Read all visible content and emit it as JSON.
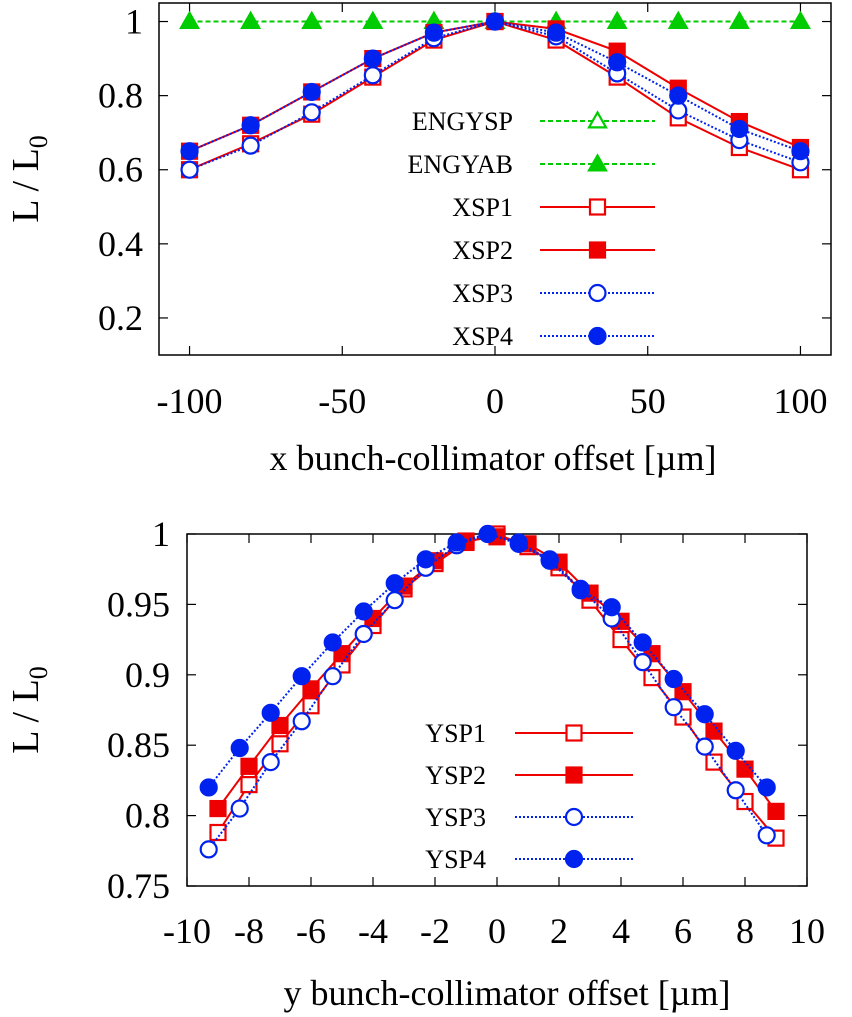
{
  "chart_data": [
    {
      "type": "line",
      "xlabel": "x bunch-collimator offset [µm]",
      "ylabel_main": "L / L",
      "ylabel_sub": "0",
      "xlim": [
        -110,
        110
      ],
      "ylim": [
        0.1,
        1.05
      ],
      "xticks": [
        "-100",
        "-50",
        "0",
        "50",
        "100"
      ],
      "yticks": [
        "0.2",
        "0.4",
        "0.6",
        "0.8",
        "1"
      ],
      "grid": false,
      "legend_position": "center-right",
      "x": [
        -100,
        -80,
        -60,
        -40,
        -20,
        0,
        20,
        40,
        60,
        80,
        100
      ],
      "series": [
        {
          "name": "ENGYSP",
          "color": "#00cc00",
          "line": "dashed",
          "marker": "triangle-open",
          "values": [
            1,
            1,
            1,
            1,
            1,
            1,
            1,
            1,
            1,
            1,
            1
          ]
        },
        {
          "name": "ENGYAB",
          "color": "#00cc00",
          "line": "dashed",
          "marker": "triangle-filled",
          "values": [
            1,
            1,
            1,
            1,
            1,
            1,
            1,
            1,
            1,
            1,
            1
          ]
        },
        {
          "name": "XSP1",
          "color": "#ee0000",
          "line": "solid",
          "marker": "square-open",
          "values": [
            0.6,
            0.67,
            0.75,
            0.85,
            0.95,
            1.0,
            0.95,
            0.85,
            0.74,
            0.66,
            0.6
          ]
        },
        {
          "name": "XSP2",
          "color": "#ee0000",
          "line": "solid",
          "marker": "square-filled",
          "values": [
            0.65,
            0.72,
            0.81,
            0.9,
            0.97,
            1.0,
            0.98,
            0.92,
            0.82,
            0.73,
            0.66
          ]
        },
        {
          "name": "XSP3",
          "color": "#0022ee",
          "line": "dotted",
          "marker": "circle-open",
          "values": [
            0.6,
            0.665,
            0.755,
            0.855,
            0.955,
            1.0,
            0.96,
            0.86,
            0.76,
            0.68,
            0.62
          ]
        },
        {
          "name": "XSP4",
          "color": "#0022ee",
          "line": "dotted",
          "marker": "circle-filled",
          "values": [
            0.65,
            0.72,
            0.81,
            0.9,
            0.97,
            1.0,
            0.97,
            0.89,
            0.8,
            0.71,
            0.65
          ]
        }
      ]
    },
    {
      "type": "line",
      "xlabel": "y bunch-collimator offset [µm]",
      "ylabel_main": "L / L",
      "ylabel_sub": "0",
      "xlim": [
        -10,
        10
      ],
      "ylim": [
        0.75,
        1
      ],
      "xticks": [
        "-10",
        "-8",
        "-6",
        "-4",
        "-2",
        "0",
        "2",
        "4",
        "6",
        "8",
        "10"
      ],
      "yticks": [
        "0.75",
        "0.8",
        "0.85",
        "0.9",
        "0.95",
        "1"
      ],
      "grid": false,
      "legend_position": "bottom-center",
      "series": [
        {
          "name": "YSP1",
          "color": "#ee0000",
          "line": "solid",
          "marker": "square-open",
          "x": [
            -9,
            -8,
            -7,
            -6,
            -5,
            -4,
            -3,
            -2,
            -1,
            0,
            1,
            2,
            3,
            4,
            5,
            6,
            7,
            8,
            9
          ],
          "values": [
            0.788,
            0.822,
            0.851,
            0.878,
            0.907,
            0.935,
            0.961,
            0.979,
            0.994,
            1.0,
            0.991,
            0.976,
            0.953,
            0.925,
            0.898,
            0.87,
            0.838,
            0.81,
            0.784
          ]
        },
        {
          "name": "YSP2",
          "color": "#ee0000",
          "line": "solid",
          "marker": "square-filled",
          "x": [
            -9,
            -8,
            -7,
            -6,
            -5,
            -4,
            -3,
            -2,
            -1,
            0,
            1,
            2,
            3,
            4,
            5,
            6,
            7,
            8,
            9
          ],
          "values": [
            0.805,
            0.835,
            0.864,
            0.89,
            0.915,
            0.94,
            0.963,
            0.981,
            0.995,
            0.998,
            0.993,
            0.98,
            0.958,
            0.938,
            0.915,
            0.888,
            0.86,
            0.833,
            0.803
          ]
        },
        {
          "name": "YSP3",
          "color": "#0022ee",
          "line": "dotted",
          "marker": "circle-open",
          "x": [
            -9.3,
            -8.3,
            -7.3,
            -6.3,
            -5.3,
            -4.3,
            -3.3,
            -2.3,
            -1.3,
            -0.3,
            0.7,
            1.7,
            2.7,
            3.7,
            4.7,
            5.7,
            6.7,
            7.7,
            8.7
          ],
          "values": [
            0.776,
            0.805,
            0.838,
            0.867,
            0.899,
            0.929,
            0.953,
            0.976,
            0.992,
            1.0,
            0.994,
            0.982,
            0.961,
            0.94,
            0.909,
            0.877,
            0.849,
            0.818,
            0.786
          ]
        },
        {
          "name": "YSP4",
          "color": "#0022ee",
          "line": "dotted",
          "marker": "circle-filled",
          "x": [
            -9.3,
            -8.3,
            -7.3,
            -6.3,
            -5.3,
            -4.3,
            -3.3,
            -2.3,
            -1.3,
            -0.3,
            0.7,
            1.7,
            2.7,
            3.7,
            4.7,
            5.7,
            6.7,
            7.7,
            8.7
          ],
          "values": [
            0.82,
            0.848,
            0.873,
            0.899,
            0.923,
            0.945,
            0.965,
            0.982,
            0.994,
            1.0,
            0.993,
            0.981,
            0.96,
            0.948,
            0.923,
            0.897,
            0.872,
            0.846,
            0.82
          ]
        }
      ]
    }
  ]
}
